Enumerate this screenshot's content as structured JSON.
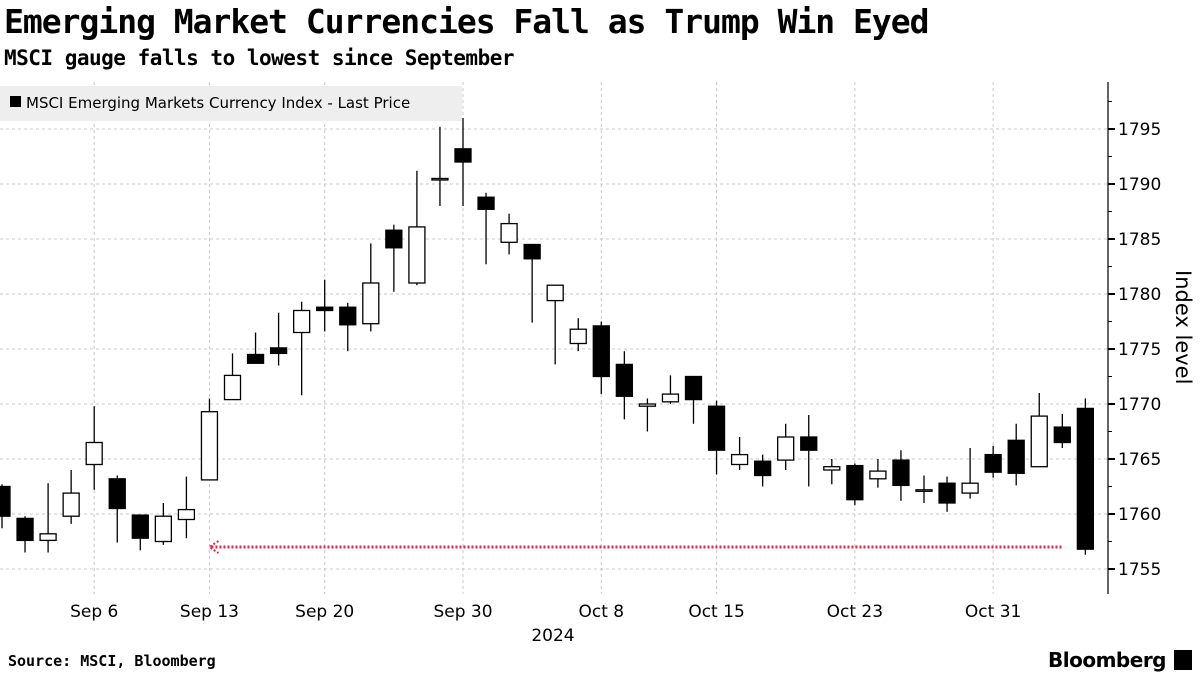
{
  "title": "Emerging Market Currencies Fall as Trump Win Eyed",
  "subtitle": "MSCI gauge falls to lowest since September",
  "source": "Source: MSCI, Bloomberg",
  "logo": "Bloomberg",
  "chart_data": {
    "type": "candlestick",
    "legend": "MSCI Emerging Markets Currency Index - Last Price",
    "legend_position": "top-left",
    "ylabel": "Index level",
    "xlabel": "2024",
    "ylim": [
      1752.5,
      1799
    ],
    "yticks": [
      1755,
      1760,
      1765,
      1770,
      1775,
      1780,
      1785,
      1790,
      1795
    ],
    "xticks": [
      {
        "i": 4,
        "label": "Sep 6"
      },
      {
        "i": 9,
        "label": "Sep 13"
      },
      {
        "i": 14,
        "label": "Sep 20"
      },
      {
        "i": 20,
        "label": "Sep 30"
      },
      {
        "i": 26,
        "label": "Oct 8"
      },
      {
        "i": 31,
        "label": "Oct 15"
      },
      {
        "i": 37,
        "label": "Oct 23"
      },
      {
        "i": 43,
        "label": "Oct 31"
      }
    ],
    "grid": true,
    "ohlc": [
      [
        1762.5,
        1762.7,
        1758.7,
        1759.8
      ],
      [
        1759.6,
        1759.8,
        1756.5,
        1757.6
      ],
      [
        1757.6,
        1762.8,
        1756.5,
        1758.2
      ],
      [
        1759.8,
        1764,
        1759.1,
        1761.9
      ],
      [
        1764.5,
        1769.8,
        1762.2,
        1766.5
      ],
      [
        1763.2,
        1763.5,
        1757.4,
        1760.5
      ],
      [
        1759.9,
        1759.9,
        1756.7,
        1757.8
      ],
      [
        1757.5,
        1761,
        1757.2,
        1759.8
      ],
      [
        1759.5,
        1763.4,
        1757.8,
        1760.4
      ],
      [
        1763.1,
        1770.5,
        1763.1,
        1769.3
      ],
      [
        1770.4,
        1774.6,
        1770.4,
        1772.6
      ],
      [
        1774.5,
        1776.5,
        1773.7,
        1773.7
      ],
      [
        1775.1,
        1778.3,
        1773.5,
        1774.6
      ],
      [
        1776.5,
        1779.3,
        1770.8,
        1778.5
      ],
      [
        1778.8,
        1781.3,
        1776.6,
        1778.5
      ],
      [
        1778.8,
        1779.2,
        1774.8,
        1777.2
      ],
      [
        1777.3,
        1784.6,
        1776.6,
        1781
      ],
      [
        1785.8,
        1786.3,
        1780.2,
        1784.2
      ],
      [
        1781,
        1791.2,
        1780.8,
        1786.1
      ],
      [
        1790.5,
        1795.2,
        1788,
        1790.5
      ],
      [
        1793.2,
        1796,
        1788,
        1792
      ],
      [
        1788.8,
        1789.2,
        1782.7,
        1787.7
      ],
      [
        1784.7,
        1787.3,
        1783.6,
        1786.4
      ],
      [
        1784.5,
        1784.5,
        1777.4,
        1783.2
      ],
      [
        1779.4,
        1780.8,
        1773.6,
        1780.8
      ],
      [
        1775.5,
        1777.8,
        1774.8,
        1776.8
      ],
      [
        1777.1,
        1777.5,
        1770.9,
        1772.5
      ],
      [
        1773.6,
        1774.8,
        1768.6,
        1770.7
      ],
      [
        1769.8,
        1770.5,
        1767.5,
        1770
      ],
      [
        1770.2,
        1772.6,
        1770,
        1770.9
      ],
      [
        1772.5,
        1772.5,
        1768.2,
        1770.4
      ],
      [
        1769.8,
        1770.3,
        1763.6,
        1765.8
      ],
      [
        1764.5,
        1767,
        1764,
        1765.4
      ],
      [
        1764.8,
        1765.4,
        1762.5,
        1763.5
      ],
      [
        1764.9,
        1768.2,
        1764,
        1767
      ],
      [
        1767,
        1769,
        1762.5,
        1765.8
      ],
      [
        1764,
        1765,
        1762.7,
        1764.3
      ],
      [
        1764.4,
        1764.6,
        1760.8,
        1761.3
      ],
      [
        1763.2,
        1765,
        1762.4,
        1763.9
      ],
      [
        1764.9,
        1765.8,
        1761.2,
        1762.6
      ],
      [
        1762.2,
        1763.5,
        1761,
        1762.2
      ],
      [
        1762.8,
        1763.4,
        1760.2,
        1761
      ],
      [
        1761.9,
        1766,
        1761.4,
        1762.8
      ],
      [
        1765.4,
        1766.2,
        1763.3,
        1763.8
      ],
      [
        1766.7,
        1768.2,
        1762.6,
        1763.7
      ],
      [
        1764.3,
        1771,
        1764.3,
        1768.9
      ],
      [
        1767.9,
        1769.1,
        1766,
        1766.5
      ],
      [
        1769.6,
        1770.5,
        1756.3,
        1756.8
      ]
    ],
    "reference_line": {
      "value": 1757,
      "from_index": 9,
      "to_index": 47,
      "color": "#e0284f"
    }
  }
}
